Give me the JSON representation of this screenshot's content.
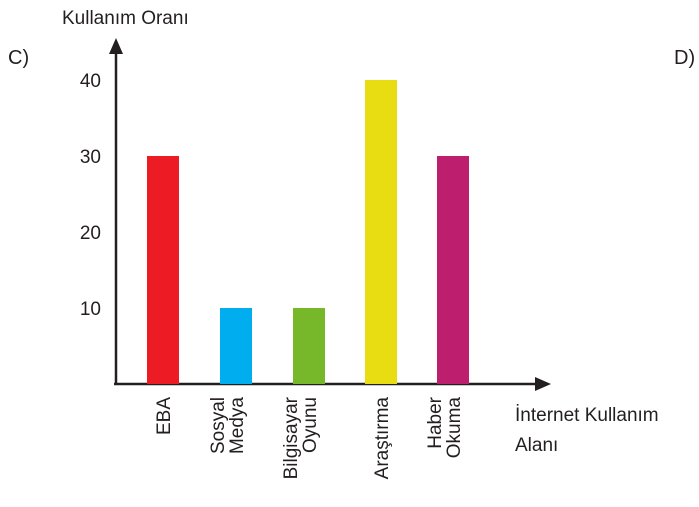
{
  "option_left": "C)",
  "option_right": "D)",
  "chart_data": {
    "type": "bar",
    "ylabel": "Kullanım Oranı",
    "xlabel_lines": [
      "İnternet Kullanım",
      "Alanı"
    ],
    "categories": [
      [
        "EBA"
      ],
      [
        "Sosyal",
        "Medya"
      ],
      [
        "Bilgisayar",
        "Oyunu"
      ],
      [
        "Araştırma"
      ],
      [
        "Haber",
        "Okuma"
      ]
    ],
    "values": [
      30,
      10,
      10,
      40,
      30
    ],
    "colors": [
      "#ed1c24",
      "#00aeef",
      "#76b82a",
      "#e8dc12",
      "#bd1f6e"
    ],
    "yticks": [
      10,
      20,
      30,
      40
    ],
    "ylim": [
      0,
      40
    ],
    "grid": false
  }
}
